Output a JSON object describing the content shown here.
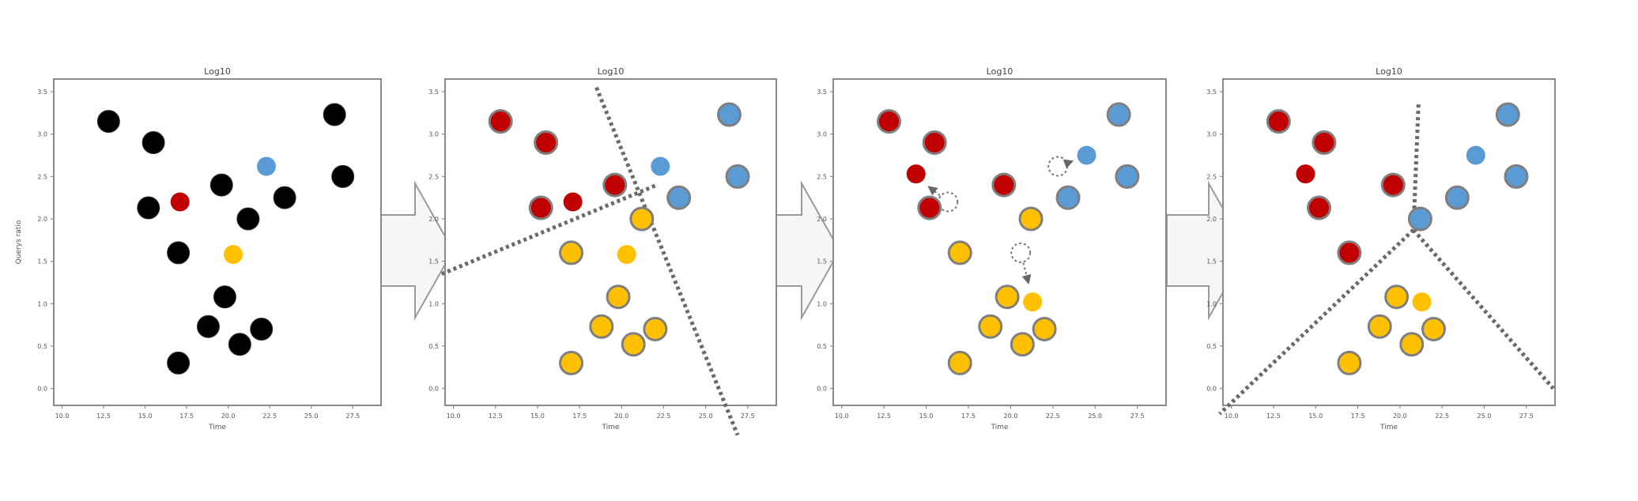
{
  "figure": {
    "description_labels": {
      "panel_title": "Log10",
      "x_axis_label": "Time",
      "y_axis_label": "Querys ratio"
    },
    "x_ticks": [
      "10.0",
      "12.5",
      "15.0",
      "17.5",
      "20.0",
      "22.5",
      "25.0",
      "27.5"
    ],
    "y_ticks": [
      "0.0",
      "0.5",
      "1.0",
      "1.5",
      "2.0",
      "2.5",
      "3.0",
      "3.5"
    ],
    "x_range": [
      9.5,
      29.2
    ],
    "y_range": [
      -0.2,
      3.65
    ],
    "colors": {
      "unassigned": "#000000",
      "cluster_red": "#c00000",
      "cluster_blue": "#5b9bd5",
      "cluster_yellow": "#ffc000",
      "point_outline": "#7f7f7f",
      "boundary": "#6a6a6a"
    }
  },
  "panels": [
    {
      "step": 1,
      "title": "Log10",
      "points": [
        {
          "x": 12.8,
          "y": 3.15,
          "cluster": "unassigned"
        },
        {
          "x": 15.5,
          "y": 2.9,
          "cluster": "unassigned"
        },
        {
          "x": 15.2,
          "y": 2.13,
          "cluster": "unassigned"
        },
        {
          "x": 17.0,
          "y": 1.6,
          "cluster": "unassigned"
        },
        {
          "x": 19.6,
          "y": 2.4,
          "cluster": "unassigned"
        },
        {
          "x": 21.2,
          "y": 2.0,
          "cluster": "unassigned"
        },
        {
          "x": 23.4,
          "y": 2.25,
          "cluster": "unassigned"
        },
        {
          "x": 26.4,
          "y": 3.23,
          "cluster": "unassigned"
        },
        {
          "x": 26.9,
          "y": 2.5,
          "cluster": "unassigned"
        },
        {
          "x": 19.8,
          "y": 1.08,
          "cluster": "unassigned"
        },
        {
          "x": 18.8,
          "y": 0.73,
          "cluster": "unassigned"
        },
        {
          "x": 22.0,
          "y": 0.7,
          "cluster": "unassigned"
        },
        {
          "x": 20.7,
          "y": 0.52,
          "cluster": "unassigned"
        },
        {
          "x": 17.0,
          "y": 0.3,
          "cluster": "unassigned"
        },
        {
          "x": 17.1,
          "y": 2.2,
          "cluster": "centroid_red"
        },
        {
          "x": 22.3,
          "y": 2.62,
          "cluster": "centroid_blue"
        },
        {
          "x": 20.3,
          "y": 1.58,
          "cluster": "centroid_yellow"
        }
      ],
      "boundaries": [],
      "moves": []
    },
    {
      "step": 2,
      "title": "Log10",
      "points": [
        {
          "x": 12.8,
          "y": 3.15,
          "cluster": "red"
        },
        {
          "x": 15.5,
          "y": 2.9,
          "cluster": "red"
        },
        {
          "x": 15.2,
          "y": 2.13,
          "cluster": "red"
        },
        {
          "x": 19.6,
          "y": 2.4,
          "cluster": "red"
        },
        {
          "x": 23.4,
          "y": 2.25,
          "cluster": "blue"
        },
        {
          "x": 26.4,
          "y": 3.23,
          "cluster": "blue"
        },
        {
          "x": 26.9,
          "y": 2.5,
          "cluster": "blue"
        },
        {
          "x": 21.2,
          "y": 2.0,
          "cluster": "yellow"
        },
        {
          "x": 17.0,
          "y": 1.6,
          "cluster": "yellow"
        },
        {
          "x": 19.8,
          "y": 1.08,
          "cluster": "yellow"
        },
        {
          "x": 18.8,
          "y": 0.73,
          "cluster": "yellow"
        },
        {
          "x": 22.0,
          "y": 0.7,
          "cluster": "yellow"
        },
        {
          "x": 20.7,
          "y": 0.52,
          "cluster": "yellow"
        },
        {
          "x": 17.0,
          "y": 0.3,
          "cluster": "yellow"
        },
        {
          "x": 17.1,
          "y": 2.2,
          "cluster": "centroid_red"
        },
        {
          "x": 22.3,
          "y": 2.62,
          "cluster": "centroid_blue"
        },
        {
          "x": 20.3,
          "y": 1.58,
          "cluster": "centroid_yellow"
        }
      ],
      "boundaries": [
        [
          [
            9.3,
            1.35
          ],
          [
            22.1,
            2.4
          ]
        ],
        [
          [
            18.5,
            3.55
          ],
          [
            26.9,
            -0.55
          ]
        ]
      ],
      "moves": []
    },
    {
      "step": 3,
      "title": "Log10",
      "points": [
        {
          "x": 12.8,
          "y": 3.15,
          "cluster": "red"
        },
        {
          "x": 15.5,
          "y": 2.9,
          "cluster": "red"
        },
        {
          "x": 15.2,
          "y": 2.13,
          "cluster": "red"
        },
        {
          "x": 19.6,
          "y": 2.4,
          "cluster": "red"
        },
        {
          "x": 23.4,
          "y": 2.25,
          "cluster": "blue"
        },
        {
          "x": 26.4,
          "y": 3.23,
          "cluster": "blue"
        },
        {
          "x": 26.9,
          "y": 2.5,
          "cluster": "blue"
        },
        {
          "x": 21.2,
          "y": 2.0,
          "cluster": "yellow"
        },
        {
          "x": 17.0,
          "y": 1.6,
          "cluster": "yellow"
        },
        {
          "x": 19.8,
          "y": 1.08,
          "cluster": "yellow"
        },
        {
          "x": 18.8,
          "y": 0.73,
          "cluster": "yellow"
        },
        {
          "x": 22.0,
          "y": 0.7,
          "cluster": "yellow"
        },
        {
          "x": 20.7,
          "y": 0.52,
          "cluster": "yellow"
        },
        {
          "x": 17.0,
          "y": 0.3,
          "cluster": "yellow"
        },
        {
          "x": 14.4,
          "y": 2.53,
          "cluster": "centroid_red"
        },
        {
          "x": 24.5,
          "y": 2.75,
          "cluster": "centroid_blue"
        },
        {
          "x": 21.3,
          "y": 1.02,
          "cluster": "centroid_yellow"
        }
      ],
      "boundaries": [],
      "moves": [
        {
          "from": [
            16.3,
            2.2
          ],
          "to": [
            14.7,
            2.45
          ]
        },
        {
          "from": [
            22.8,
            2.62
          ],
          "to": [
            24.2,
            2.72
          ]
        },
        {
          "from": [
            20.6,
            1.6
          ],
          "to": [
            21.2,
            1.13
          ]
        }
      ]
    },
    {
      "step": 4,
      "title": "Log10",
      "points": [
        {
          "x": 12.8,
          "y": 3.15,
          "cluster": "red"
        },
        {
          "x": 15.5,
          "y": 2.9,
          "cluster": "red"
        },
        {
          "x": 15.2,
          "y": 2.13,
          "cluster": "red"
        },
        {
          "x": 19.6,
          "y": 2.4,
          "cluster": "red"
        },
        {
          "x": 17.0,
          "y": 1.6,
          "cluster": "red"
        },
        {
          "x": 23.4,
          "y": 2.25,
          "cluster": "blue"
        },
        {
          "x": 26.4,
          "y": 3.23,
          "cluster": "blue"
        },
        {
          "x": 26.9,
          "y": 2.5,
          "cluster": "blue"
        },
        {
          "x": 21.2,
          "y": 2.0,
          "cluster": "blue"
        },
        {
          "x": 19.8,
          "y": 1.08,
          "cluster": "yellow"
        },
        {
          "x": 18.8,
          "y": 0.73,
          "cluster": "yellow"
        },
        {
          "x": 22.0,
          "y": 0.7,
          "cluster": "yellow"
        },
        {
          "x": 20.7,
          "y": 0.52,
          "cluster": "yellow"
        },
        {
          "x": 17.0,
          "y": 0.3,
          "cluster": "yellow"
        },
        {
          "x": 14.4,
          "y": 2.53,
          "cluster": "centroid_red"
        },
        {
          "x": 24.5,
          "y": 2.75,
          "cluster": "centroid_blue"
        },
        {
          "x": 21.3,
          "y": 1.02,
          "cluster": "centroid_yellow"
        }
      ],
      "boundaries": [
        [
          [
            21.1,
            3.35
          ],
          [
            20.8,
            1.87
          ]
        ],
        [
          [
            20.8,
            1.87
          ],
          [
            9.3,
            -0.3
          ]
        ],
        [
          [
            20.8,
            1.87
          ],
          [
            29.1,
            -0.0
          ]
        ]
      ],
      "moves": []
    }
  ]
}
